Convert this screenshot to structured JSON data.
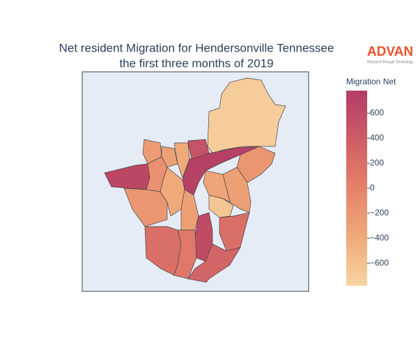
{
  "chart_data": {
    "type": "choropleth",
    "title": "Net resident Migration for Hendersonville Tennessee",
    "subtitle": "the first three months of 2019",
    "colorbar_title": "Migration Net",
    "logo": "ADVAN",
    "logo_tagline": "Research through Technology",
    "zlim": [
      -780,
      780
    ],
    "zticks": [
      {
        "value": -600,
        "label": "−600"
      },
      {
        "value": -400,
        "label": "−400"
      },
      {
        "value": -200,
        "label": "−200"
      },
      0,
      200,
      400,
      600
    ],
    "colorscale": [
      "#f7d5a3",
      "#f0a979",
      "#e5826a",
      "#cf5c66",
      "#b33c65"
    ],
    "values": [
      -700,
      720,
      650,
      -200,
      -300,
      -650,
      -350,
      200,
      600,
      300,
      200,
      100,
      -200,
      -250,
      -300,
      -400,
      500,
      -400,
      -300,
      -150
    ]
  }
}
